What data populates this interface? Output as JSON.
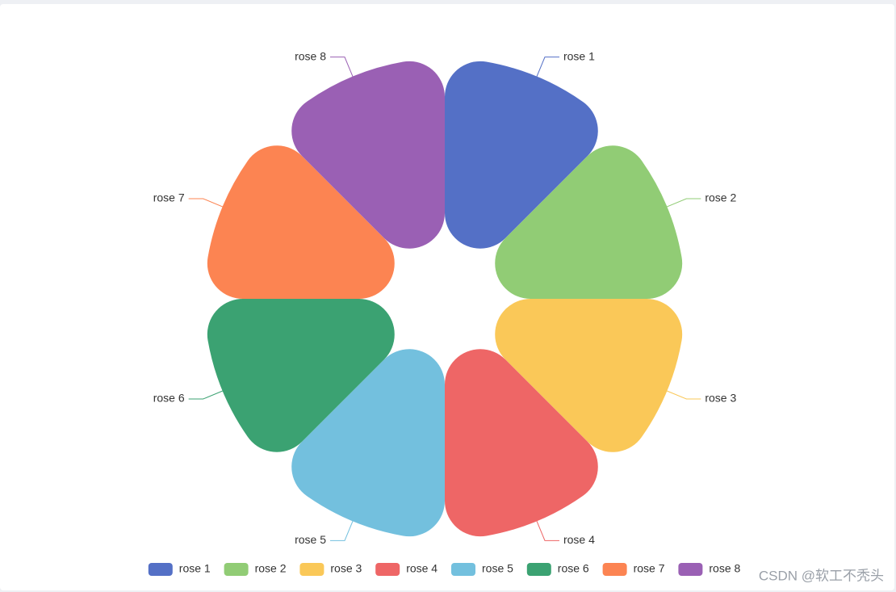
{
  "chart_data": {
    "type": "pie",
    "rose": true,
    "categories": [
      "rose 1",
      "rose 2",
      "rose 3",
      "rose 4",
      "rose 5",
      "rose 6",
      "rose 7",
      "rose 8"
    ],
    "values": [
      40,
      40,
      40,
      40,
      40,
      40,
      40,
      40
    ],
    "colors": [
      "#5470c6",
      "#91cc75",
      "#fac858",
      "#ee6666",
      "#73c0de",
      "#3ba272",
      "#fc8452",
      "#9a60b4"
    ],
    "legend": "bottom"
  },
  "watermark": "CSDN @软工不秃头"
}
